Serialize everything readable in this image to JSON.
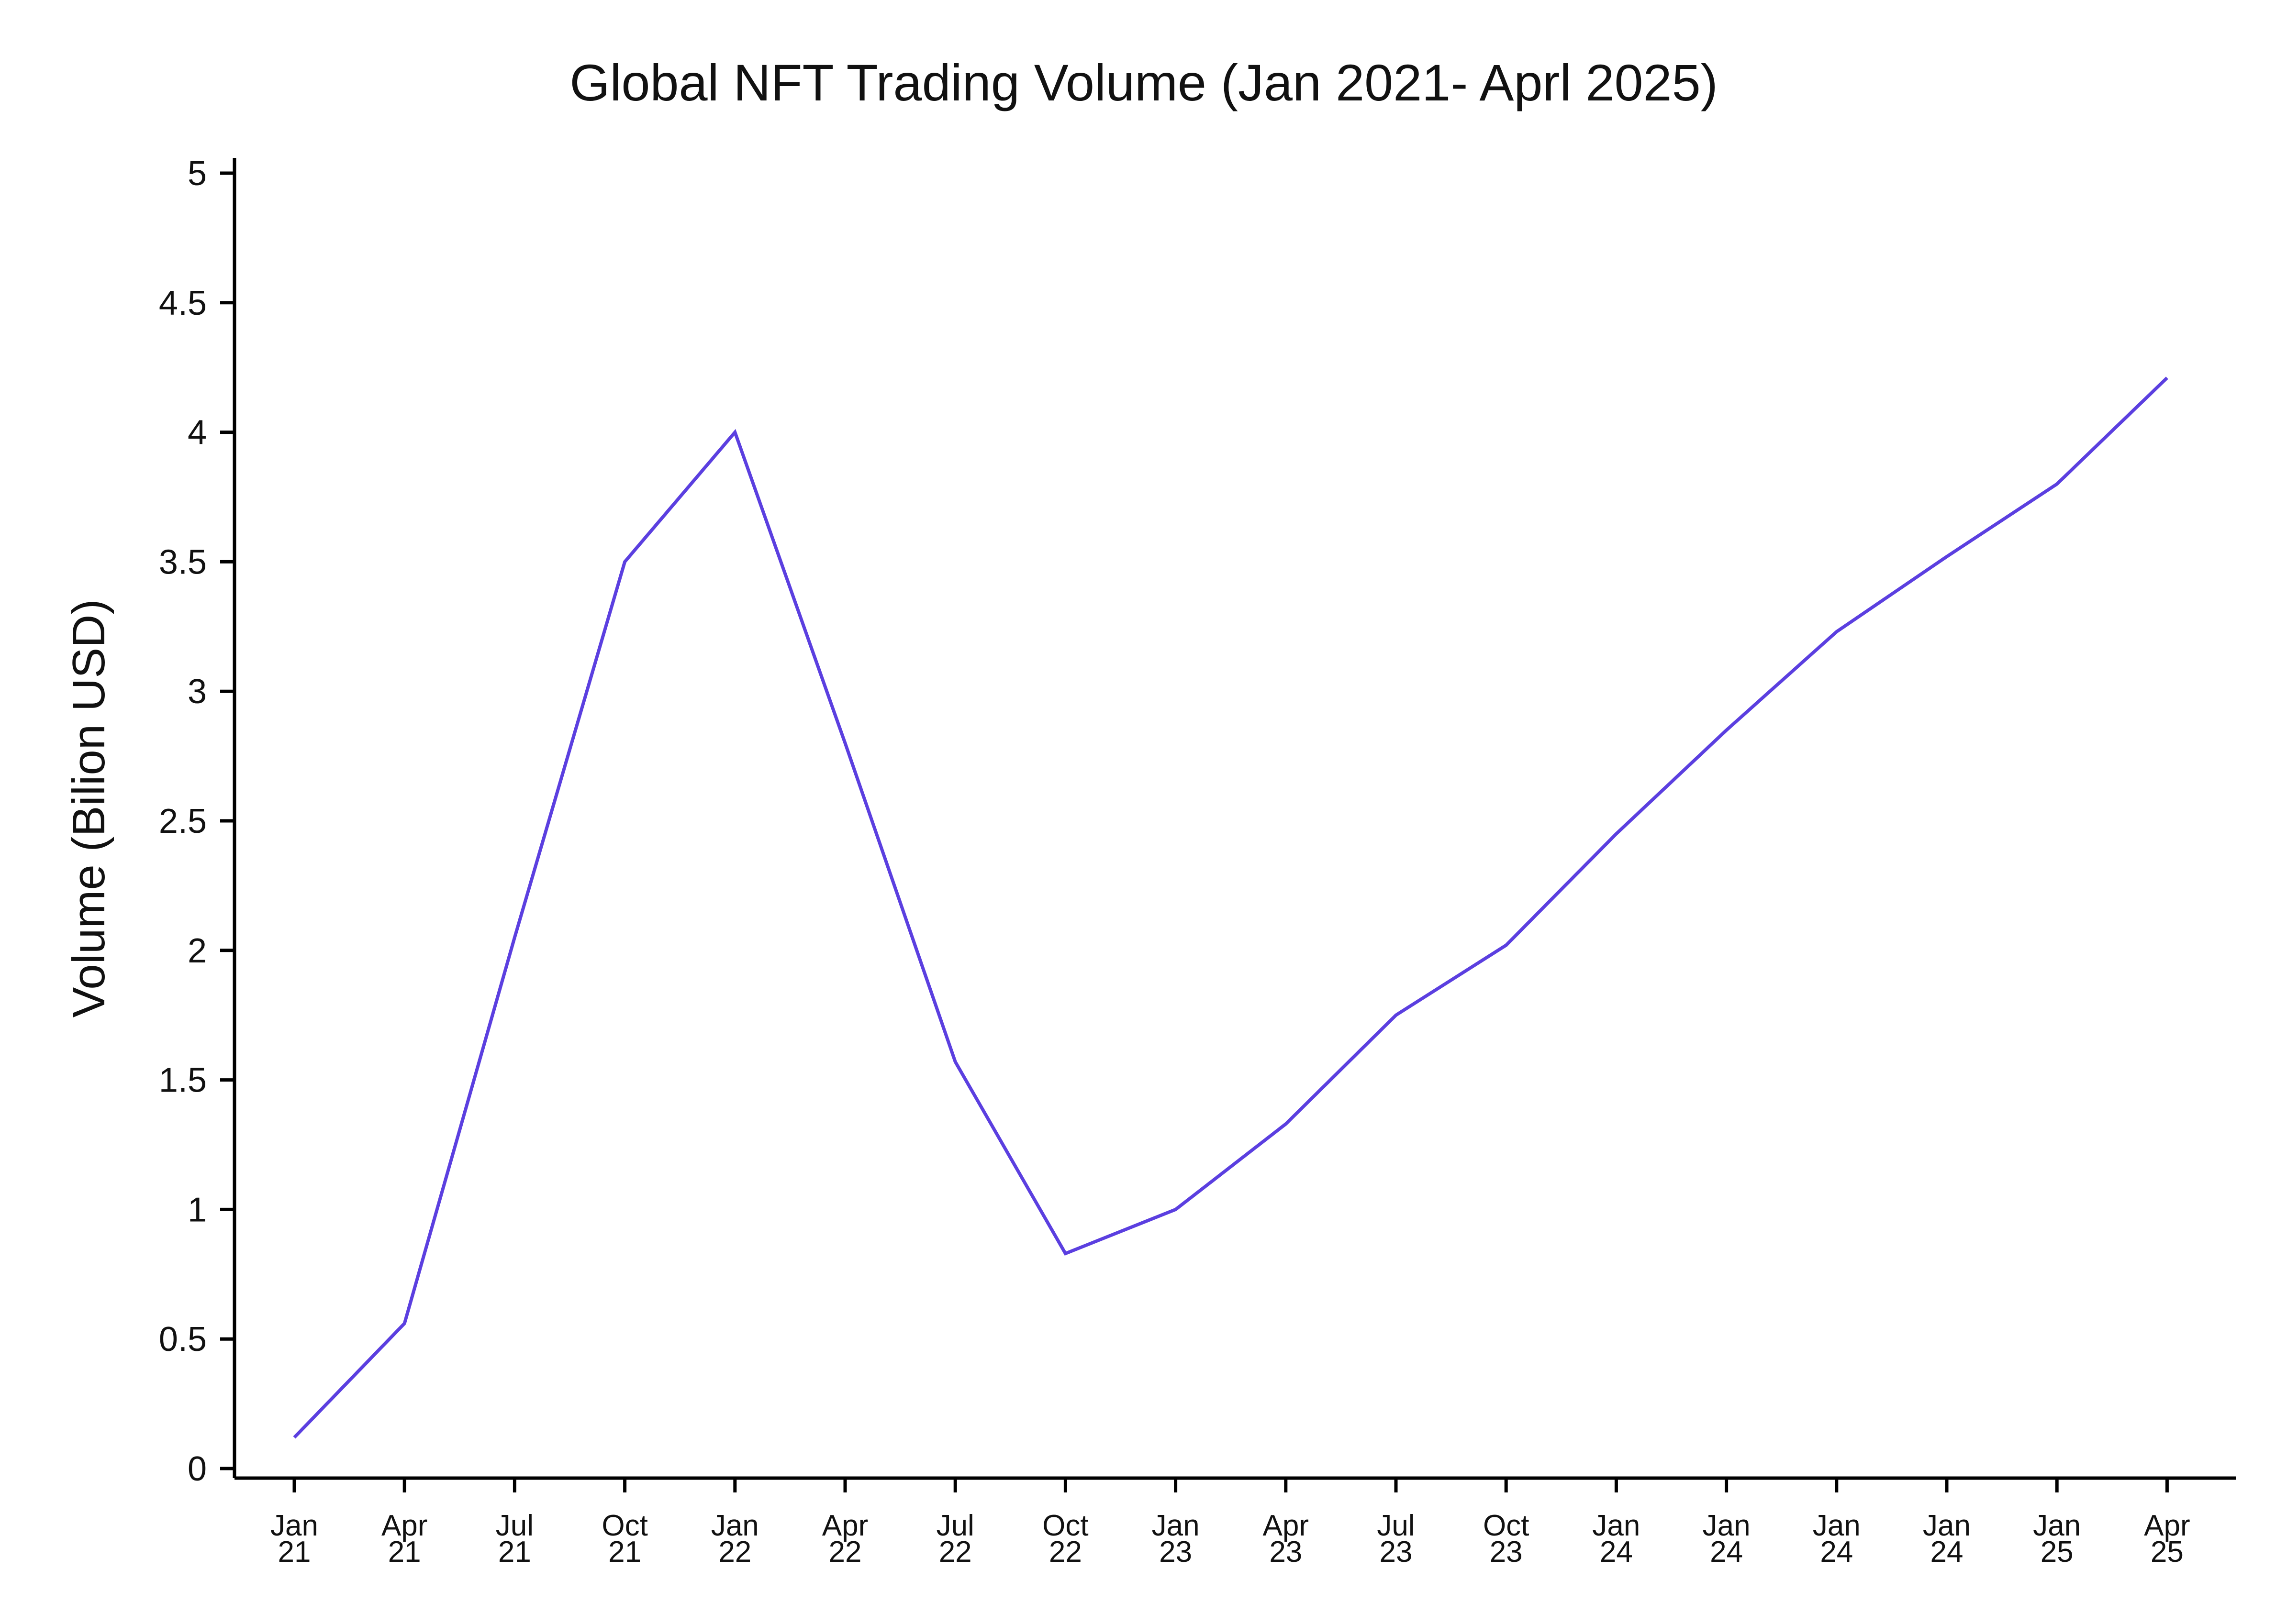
{
  "chart_data": {
    "type": "line",
    "title": "Global NFT Trading Volume (Jan 2021- Aprl 2025)",
    "xlabel": "",
    "ylabel": "Volume (Bilion USD)",
    "ylim": [
      0,
      5
    ],
    "yticks": [
      "0",
      "0.5",
      "1",
      "1.5",
      "2",
      "2.5",
      "3",
      "3.5",
      "4",
      "4.5",
      "5"
    ],
    "xticks": [
      [
        "Jan",
        "21"
      ],
      [
        "Apr",
        "21"
      ],
      [
        "Jul",
        "21"
      ],
      [
        "Oct",
        "21"
      ],
      [
        "Jan",
        "22"
      ],
      [
        "Apr",
        "22"
      ],
      [
        "Jul",
        "22"
      ],
      [
        "Oct",
        "22"
      ],
      [
        "Jan",
        "23"
      ],
      [
        "Apr",
        "23"
      ],
      [
        "Jul",
        "23"
      ],
      [
        "Oct",
        "23"
      ],
      [
        "Jan",
        "24"
      ],
      [
        "Jan",
        "24"
      ],
      [
        "Jan",
        "24"
      ],
      [
        "Jan",
        "24"
      ],
      [
        "Jan",
        "25"
      ],
      [
        "Apr",
        "25"
      ]
    ],
    "grid": false,
    "series": [
      {
        "color": "#5B3FE0",
        "values": [
          0.12,
          0.56,
          2.05,
          3.5,
          4.0,
          2.8,
          1.57,
          0.83,
          1.0,
          1.33,
          1.75,
          2.02,
          2.45,
          2.85,
          3.23,
          3.52,
          3.8,
          4.21
        ]
      }
    ]
  }
}
